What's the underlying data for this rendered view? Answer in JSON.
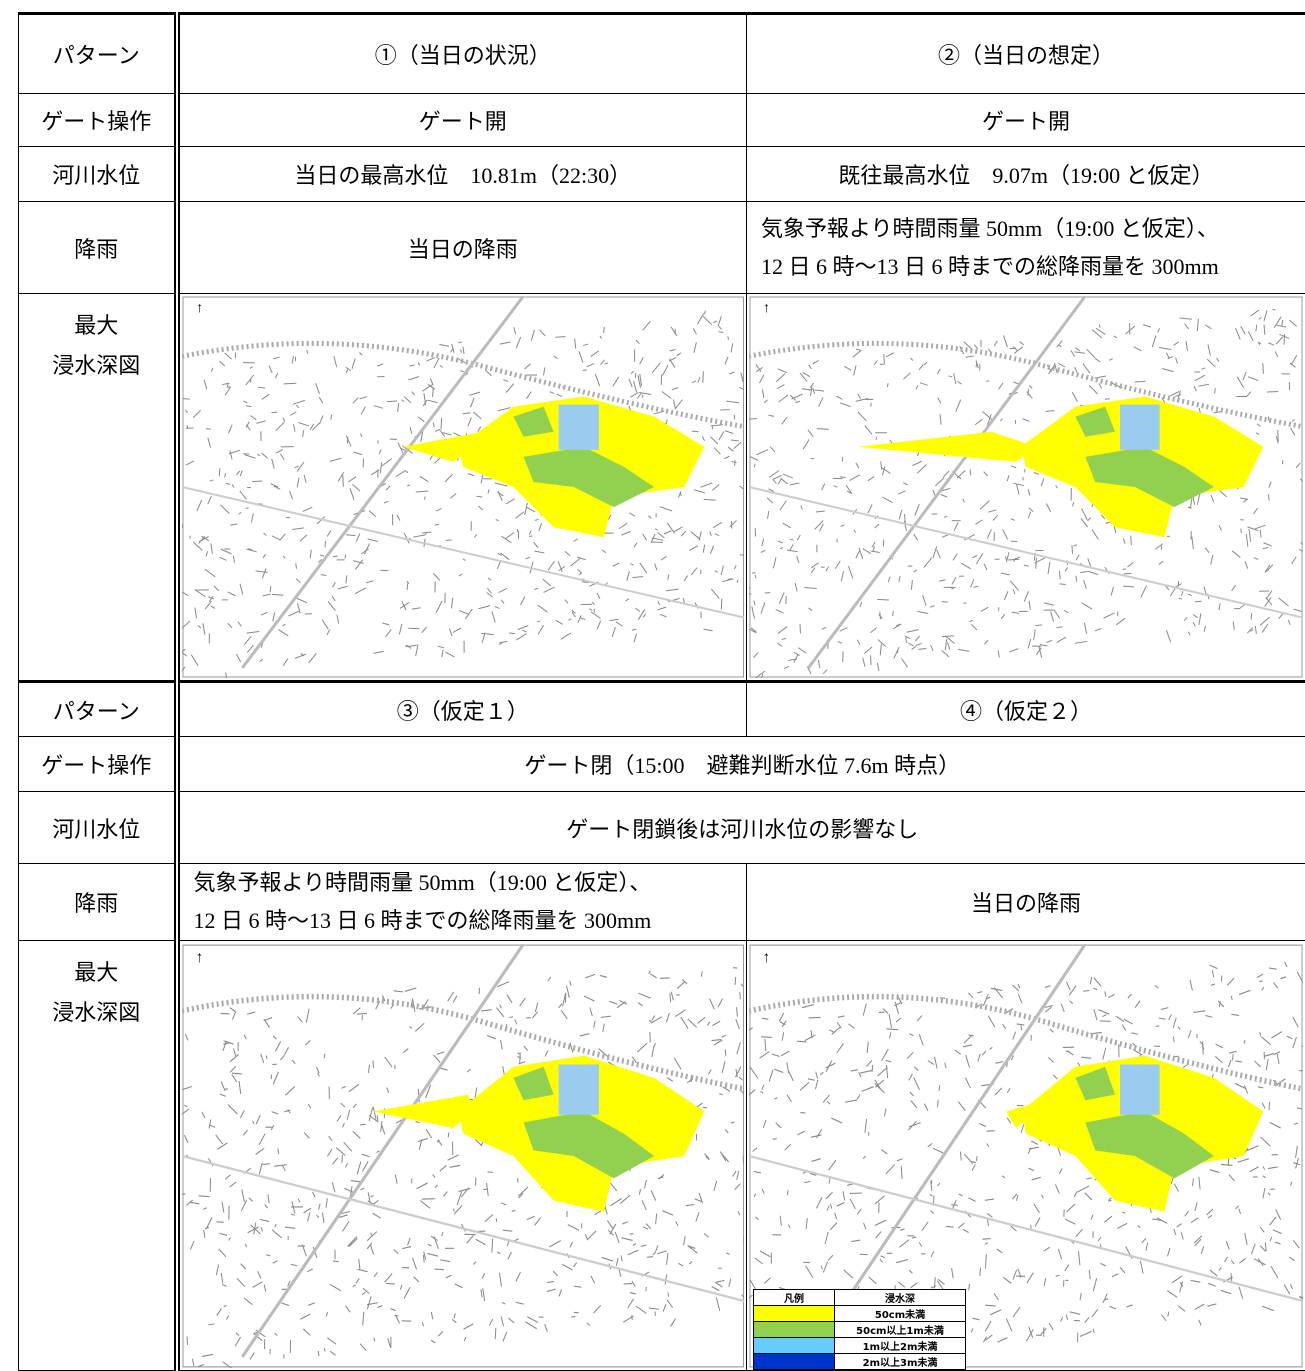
{
  "table": {
    "rows": [
      [
        "パターン",
        "①（当日の状況）",
        "②（当日の想定）"
      ],
      [
        "ゲート操作",
        "ゲート開",
        "ゲート開"
      ],
      [
        "河川水位",
        "当日の最高水位　10.81m（22:30）",
        "既往最高水位　9.07m（19:00 と仮定）"
      ],
      [
        "降雨",
        "当日の降雨",
        [
          "気象予報より時間雨量 50mm（19:00 と仮定）、",
          "12 日 6 時～13 日 6 時までの総降雨量を 300mm"
        ]
      ],
      [
        [
          "最大",
          "浸水深図"
        ]
      ],
      [
        "パターン",
        "③（仮定１）",
        "④（仮定２）"
      ],
      [
        "ゲート操作",
        "ゲート閉（15:00　避難判断水位 7.6m 時点）"
      ],
      [
        "河川水位",
        "ゲート閉鎖後は河川水位の影響なし"
      ],
      [
        "降雨",
        [
          "気象予報より時間雨量 50mm（19:00 と仮定）、",
          "12 日 6 時～13 日 6 時までの総降雨量を 300mm"
        ],
        "当日の降雨"
      ],
      [
        [
          "最大",
          "浸水深図"
        ]
      ]
    ],
    "legend": {
      "header": [
        "凡例",
        "浸水深"
      ],
      "items": [
        {
          "label": "50cm未満",
          "color": "#ffff00"
        },
        {
          "label": "50cm以上1m未満",
          "color": "#92d050"
        },
        {
          "label": "1m以上2m未満",
          "color": "#66ccff"
        },
        {
          "label": "2m以上3m未満",
          "color": "#0033cc"
        }
      ]
    }
  }
}
